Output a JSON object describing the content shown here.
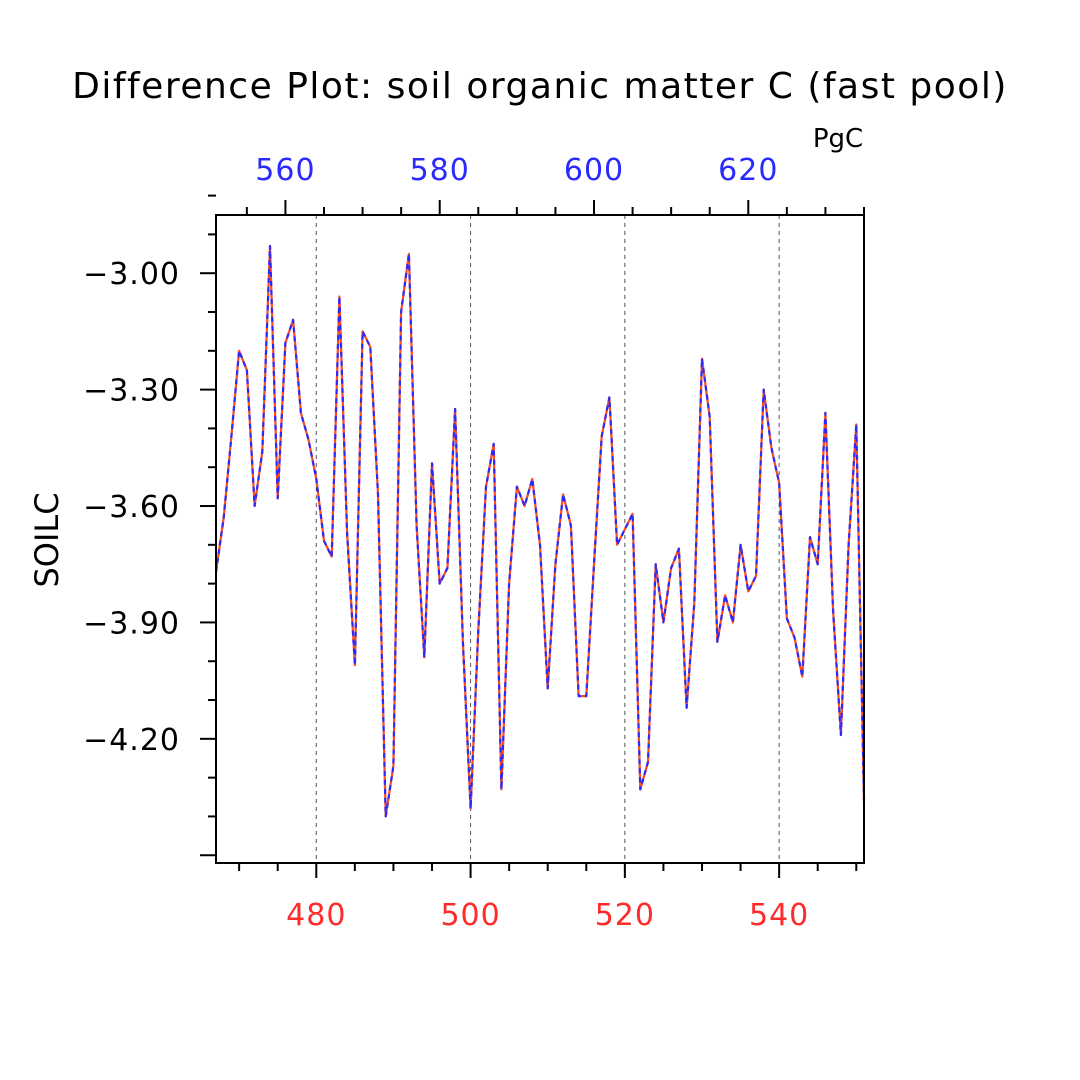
{
  "chart_data": {
    "type": "line",
    "title": "Difference Plot: soil organic matter C (fast pool)",
    "ylabel": "SOILC",
    "top_axis_unit": "PgC",
    "ylim": [
      -4.52,
      -2.85
    ],
    "bottom_axis": {
      "xlim": [
        467,
        551
      ],
      "ticks": [
        480,
        500,
        520,
        540
      ],
      "labels": [
        "480",
        "500",
        "520",
        "540"
      ],
      "color": "#ff2a2a"
    },
    "top_axis": {
      "xlim": [
        551,
        635
      ],
      "ticks": [
        560,
        580,
        600,
        620
      ],
      "labels": [
        "560",
        "580",
        "600",
        "620"
      ],
      "color": "#2a2aff"
    },
    "y_ticks": [
      -3.0,
      -3.3,
      -3.6,
      -3.9,
      -4.2
    ],
    "y_tick_labels": [
      "−3.00",
      "−3.30",
      "−3.60",
      "−3.90",
      "−4.20"
    ],
    "grid": "vertical dashed at major x ticks",
    "series": [
      {
        "name": "bottom-axis series",
        "color": "#ff4a1a",
        "style": "solid",
        "x": [
          467,
          468,
          469,
          470,
          471,
          472,
          473,
          474,
          475,
          476,
          477,
          478,
          479,
          480,
          481,
          482,
          483,
          484,
          485,
          486,
          487,
          488,
          489,
          490,
          491,
          492,
          493,
          494,
          495,
          496,
          497,
          498,
          499,
          500,
          501,
          502,
          503,
          504,
          505,
          506,
          507,
          508,
          509,
          510,
          511,
          512,
          513,
          514,
          515,
          516,
          517,
          518,
          519,
          520,
          521,
          522,
          523,
          524,
          525,
          526,
          527,
          528,
          529,
          530,
          531,
          532,
          533,
          534,
          535,
          536,
          537,
          538,
          539,
          540,
          541,
          542,
          543,
          544,
          545,
          546,
          547,
          548,
          549,
          550,
          551
        ],
        "values": [
          -3.77,
          -3.63,
          -3.42,
          -3.2,
          -3.25,
          -3.6,
          -3.46,
          -2.93,
          -3.58,
          -3.18,
          -3.12,
          -3.36,
          -3.43,
          -3.53,
          -3.69,
          -3.73,
          -3.06,
          -3.67,
          -4.01,
          -3.15,
          -3.19,
          -3.57,
          -4.4,
          -4.27,
          -3.1,
          -2.95,
          -3.65,
          -3.99,
          -3.49,
          -3.8,
          -3.76,
          -3.35,
          -3.95,
          -4.38,
          -3.92,
          -3.55,
          -3.44,
          -4.33,
          -3.8,
          -3.55,
          -3.6,
          -3.53,
          -3.7,
          -4.07,
          -3.75,
          -3.57,
          -3.65,
          -4.09,
          -4.09,
          -3.75,
          -3.42,
          -3.32,
          -3.7,
          -3.66,
          -3.62,
          -4.33,
          -4.26,
          -3.75,
          -3.9,
          -3.76,
          -3.71,
          -4.12,
          -3.85,
          -3.22,
          -3.37,
          -3.95,
          -3.83,
          -3.9,
          -3.7,
          -3.82,
          -3.78,
          -3.3,
          -3.45,
          -3.54,
          -3.89,
          -3.94,
          -4.04,
          -3.68,
          -3.75,
          -3.36,
          -3.87,
          -4.19,
          -3.7,
          -3.39,
          -4.36
        ]
      },
      {
        "name": "top-axis series",
        "color": "#2a2aff",
        "style": "dashed",
        "x": [
          551,
          552,
          553,
          554,
          555,
          556,
          557,
          558,
          559,
          560,
          561,
          562,
          563,
          564,
          565,
          566,
          567,
          568,
          569,
          570,
          571,
          572,
          573,
          574,
          575,
          576,
          577,
          578,
          579,
          580,
          581,
          582,
          583,
          584,
          585,
          586,
          587,
          588,
          589,
          590,
          591,
          592,
          593,
          594,
          595,
          596,
          597,
          598,
          599,
          600,
          601,
          602,
          603,
          604,
          605,
          606,
          607,
          608,
          609,
          610,
          611,
          612,
          613,
          614,
          615,
          616,
          617,
          618,
          619,
          620,
          621,
          622,
          623,
          624,
          625,
          626,
          627,
          628,
          629,
          630,
          631,
          632,
          633,
          634,
          635
        ],
        "values": [
          -3.77,
          -3.63,
          -3.42,
          -3.2,
          -3.25,
          -3.6,
          -3.46,
          -2.93,
          -3.58,
          -3.18,
          -3.12,
          -3.36,
          -3.43,
          -3.53,
          -3.69,
          -3.73,
          -3.06,
          -3.67,
          -4.01,
          -3.15,
          -3.19,
          -3.57,
          -4.4,
          -4.27,
          -3.1,
          -2.95,
          -3.65,
          -3.99,
          -3.49,
          -3.8,
          -3.76,
          -3.35,
          -3.95,
          -4.38,
          -3.92,
          -3.55,
          -3.44,
          -4.33,
          -3.8,
          -3.55,
          -3.6,
          -3.53,
          -3.7,
          -4.07,
          -3.75,
          -3.57,
          -3.65,
          -4.09,
          -4.09,
          -3.75,
          -3.42,
          -3.32,
          -3.7,
          -3.66,
          -3.62,
          -4.33,
          -4.26,
          -3.75,
          -3.9,
          -3.76,
          -3.71,
          -4.12,
          -3.85,
          -3.22,
          -3.37,
          -3.95,
          -3.83,
          -3.9,
          -3.7,
          -3.82,
          -3.78,
          -3.3,
          -3.45,
          -3.54,
          -3.89,
          -3.94,
          -4.04,
          -3.68,
          -3.75,
          -3.36,
          -3.87,
          -4.19,
          -3.7,
          -3.39,
          -4.36
        ]
      }
    ]
  }
}
